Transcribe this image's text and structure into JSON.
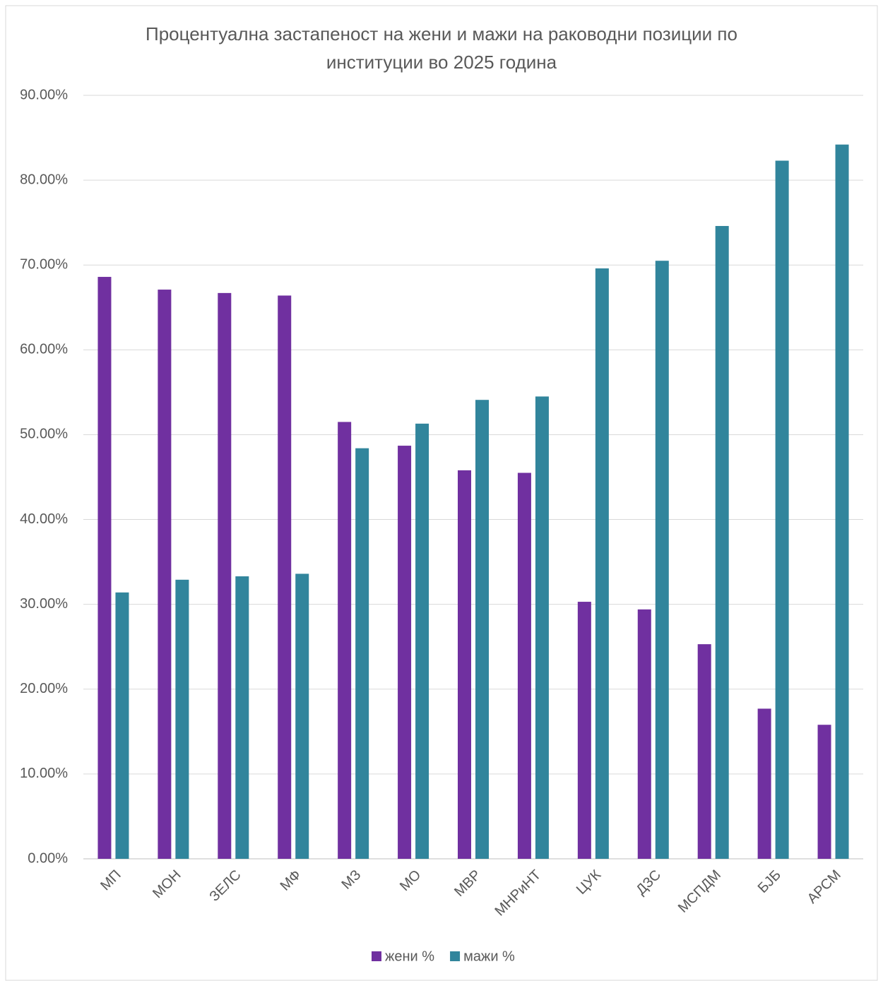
{
  "chart_data": {
    "type": "bar",
    "title": "Процентуална застапеност на жени и мажи на раководни позиции по институции во 2025 година",
    "categories": [
      "МП",
      "МОН",
      "ЗЕЛС",
      "МФ",
      "МЗ",
      "МО",
      "МВР",
      "МНРиНТ",
      "ЦУК",
      "ДЗС",
      "МСПДМ",
      "БЈБ",
      "АРСМ"
    ],
    "series": [
      {
        "name": "жени %",
        "color": "#7030a0",
        "values": [
          68.6,
          67.1,
          66.7,
          66.4,
          51.5,
          48.7,
          45.8,
          45.5,
          30.3,
          29.4,
          25.3,
          17.7,
          15.8
        ]
      },
      {
        "name": "мажи %",
        "color": "#31859c",
        "values": [
          31.4,
          32.9,
          33.3,
          33.6,
          48.4,
          51.3,
          54.1,
          54.5,
          69.6,
          70.5,
          74.6,
          82.3,
          84.2
        ]
      }
    ],
    "ylim": [
      0,
      90
    ],
    "yticks": [
      {
        "value": 0,
        "label": "0.00%"
      },
      {
        "value": 10,
        "label": "10.00%"
      },
      {
        "value": 20,
        "label": "20.00%"
      },
      {
        "value": 30,
        "label": "30.00%"
      },
      {
        "value": 40,
        "label": "40.00%"
      },
      {
        "value": 50,
        "label": "50.00%"
      },
      {
        "value": 60,
        "label": "60.00%"
      },
      {
        "value": 70,
        "label": "70.00%"
      },
      {
        "value": 80,
        "label": "80.00%"
      },
      {
        "value": 90,
        "label": "90.00%"
      }
    ],
    "grid": true,
    "legend": "bottom"
  }
}
